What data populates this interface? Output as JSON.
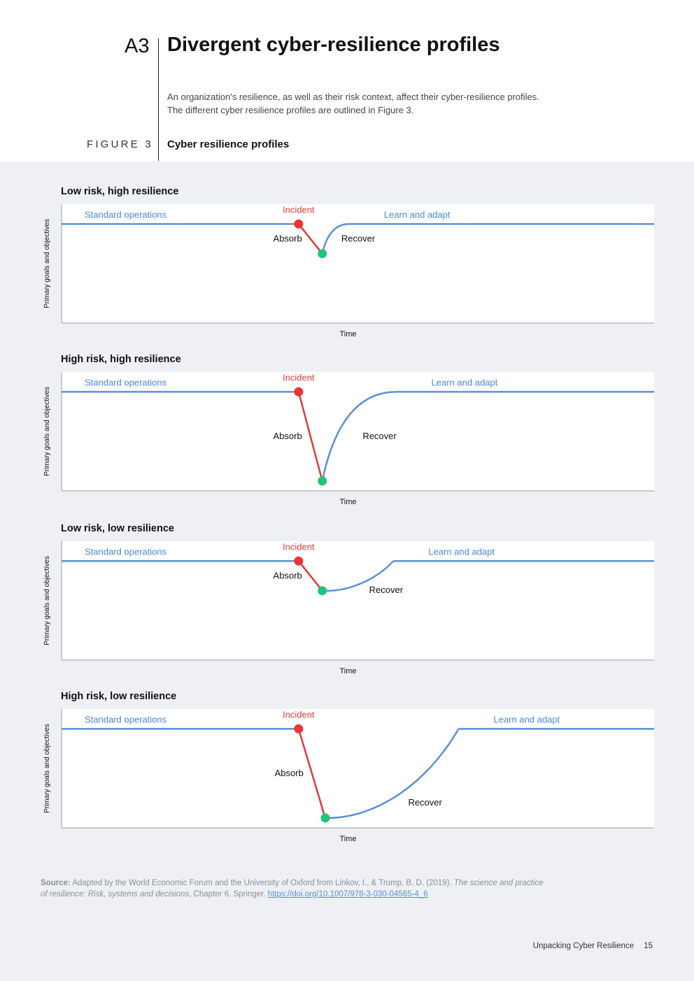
{
  "header": {
    "section_number": "A3",
    "section_title": "Divergent cyber-resilience profiles",
    "intro_line1": "An organization's resilience, as well as their risk context, affect their cyber-resilience profiles.",
    "intro_line2": "The different cyber resilience profiles are outlined in Figure 3.",
    "figure_label": "FIGURE 3",
    "figure_title": "Cyber resilience profiles"
  },
  "colors": {
    "baseline": "#5b8fd9",
    "absorb": "#e03a3a",
    "incident_dot": "#ee3333",
    "recover_dot": "#1ec47a",
    "label_blue": "#4a86db",
    "label_red": "#e03a3a"
  },
  "chart_data": [
    {
      "type": "line",
      "title": "Low risk, high resilience",
      "xlabel": "Time",
      "ylabel": "Primary goals and objectives",
      "phases": {
        "standard": "Standard operations",
        "incident": "Incident",
        "absorb": "Absorb",
        "recover": "Recover",
        "learn": "Learn and adapt"
      },
      "baseline": 1.0,
      "incident": {
        "x": 0.4,
        "y": 1.0
      },
      "bottom": {
        "x": 0.44,
        "y": 0.7
      },
      "recovered": {
        "x": 0.485,
        "y": 1.0
      },
      "recover_shape": "concave",
      "ylim": [
        0,
        1.2
      ],
      "grid": false
    },
    {
      "type": "line",
      "title": "High risk, high resilience",
      "xlabel": "Time",
      "ylabel": "Primary goals and objectives",
      "phases": {
        "standard": "Standard operations",
        "incident": "Incident",
        "absorb": "Absorb",
        "recover": "Recover",
        "learn": "Learn and adapt"
      },
      "baseline": 1.0,
      "incident": {
        "x": 0.4,
        "y": 1.0
      },
      "bottom": {
        "x": 0.44,
        "y": 0.1
      },
      "recovered": {
        "x": 0.565,
        "y": 1.0
      },
      "recover_shape": "concave",
      "ylim": [
        0,
        1.2
      ],
      "grid": false
    },
    {
      "type": "line",
      "title": "Low risk, low resilience",
      "xlabel": "Time",
      "ylabel": "Primary goals and objectives",
      "phases": {
        "standard": "Standard operations",
        "incident": "Incident",
        "absorb": "Absorb",
        "recover": "Recover",
        "learn": "Learn and adapt"
      },
      "baseline": 1.0,
      "incident": {
        "x": 0.4,
        "y": 1.0
      },
      "bottom": {
        "x": 0.44,
        "y": 0.7
      },
      "recovered": {
        "x": 0.56,
        "y": 1.0
      },
      "recover_shape": "convex",
      "ylim": [
        0,
        1.2
      ],
      "grid": false
    },
    {
      "type": "line",
      "title": "High risk, low resilience",
      "xlabel": "Time",
      "ylabel": "Primary goals and objectives",
      "phases": {
        "standard": "Standard operations",
        "incident": "Incident",
        "absorb": "Absorb",
        "recover": "Recover",
        "learn": "Learn and adapt"
      },
      "baseline": 1.0,
      "incident": {
        "x": 0.4,
        "y": 1.0
      },
      "bottom": {
        "x": 0.445,
        "y": 0.1
      },
      "recovered": {
        "x": 0.67,
        "y": 1.0
      },
      "recover_shape": "convex",
      "ylim": [
        0,
        1.2
      ],
      "grid": false
    }
  ],
  "source": {
    "label": "Source:",
    "text1": " Adapted by the World Economic Forum and the University of Oxford from Linkov, I., & Trump, B. D. (2019). ",
    "italic1": "The science and practice",
    "italic2": "of resilience: Risk, systems and decisions",
    "text2": ", Chapter 6. Springer. ",
    "link": "https://doi.org/10.1007/978-3-030-04565-4_6"
  },
  "footer": {
    "doc_title": "Unpacking Cyber Resilience",
    "page_number": "15"
  }
}
